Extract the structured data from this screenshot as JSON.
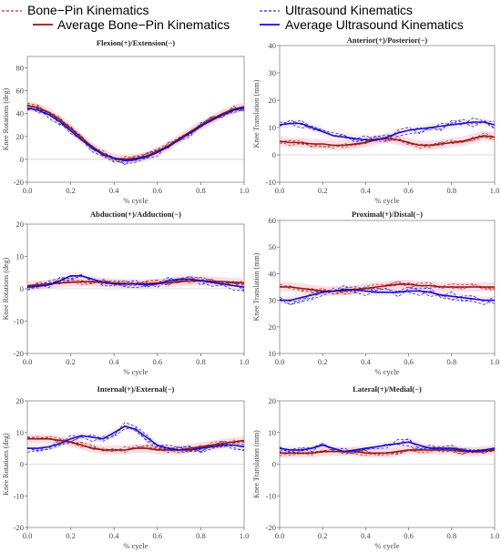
{
  "legend": {
    "bone_pin": "Bone−Pin Kinematics",
    "avg_bone_pin": "Average Bone−Pin Kinematics",
    "ultrasound": "Ultrasound Kinematics",
    "avg_ultrasound": "Average Ultrasound Kinematics"
  },
  "colors": {
    "bone_pin": "#c8302a",
    "avg_bone_pin": "#8b1a10",
    "ultrasound": "#2b2bd6",
    "avg_ultrasound": "#1010c8",
    "shade_bone_pin": "#f6c3d4",
    "shade_ultrasound": "#f6c3d4"
  },
  "chart_data": [
    {
      "type": "line",
      "title": "Flexion(+)/Extension(−)",
      "xlabel": "% cycle",
      "ylabel": "Knee Rotations (deg)",
      "xlim": [
        0,
        1
      ],
      "ylim": [
        -20,
        90
      ],
      "yticks": [
        "-20",
        "0",
        "20",
        "40",
        "60",
        "80"
      ],
      "ytick_values": [
        -20,
        0,
        20,
        40,
        60,
        80
      ],
      "xticks": [
        "0.0",
        "0.2",
        "0.4",
        "0.6",
        "0.8",
        "1.0"
      ],
      "xtick_values": [
        0,
        0.2,
        0.4,
        0.6,
        0.8,
        1.0
      ],
      "x": [
        0,
        0.05,
        0.1,
        0.15,
        0.2,
        0.25,
        0.3,
        0.35,
        0.4,
        0.45,
        0.5,
        0.55,
        0.6,
        0.65,
        0.7,
        0.75,
        0.8,
        0.85,
        0.9,
        0.95,
        1.0
      ],
      "series": [
        {
          "name": "Average Bone−Pin Kinematics",
          "values": [
            47,
            45,
            41,
            35,
            27,
            19,
            11,
            5,
            1,
            0,
            1,
            3,
            7,
            12,
            18,
            24,
            30,
            35,
            40,
            44,
            46
          ]
        },
        {
          "name": "Average Ultrasound Kinematics",
          "values": [
            45,
            43,
            39,
            33,
            25,
            17,
            10,
            4,
            1,
            -1,
            0,
            2,
            6,
            11,
            17,
            23,
            29,
            34,
            39,
            43,
            45
          ]
        }
      ]
    },
    {
      "type": "line",
      "title": "Anterior(+)/Posterior(−)",
      "xlabel": "% cycle",
      "ylabel": "Knee Translation (mm)",
      "xlim": [
        0,
        1
      ],
      "ylim": [
        -10,
        40
      ],
      "yticks": [
        "-10",
        "0",
        "10",
        "20",
        "30",
        "40"
      ],
      "ytick_values": [
        -10,
        0,
        10,
        20,
        30,
        40
      ],
      "xticks": [
        "0.0",
        "0.2",
        "0.4",
        "0.6",
        "0.8",
        "1.0"
      ],
      "xtick_values": [
        0,
        0.2,
        0.4,
        0.6,
        0.8,
        1.0
      ],
      "x": [
        0,
        0.05,
        0.1,
        0.15,
        0.2,
        0.25,
        0.3,
        0.35,
        0.4,
        0.45,
        0.5,
        0.55,
        0.6,
        0.65,
        0.7,
        0.75,
        0.8,
        0.85,
        0.9,
        0.95,
        1.0
      ],
      "series": [
        {
          "name": "Average Bone−Pin Kinematics",
          "values": [
            5,
            4.5,
            4.5,
            4,
            4,
            3.5,
            3.5,
            4,
            4.5,
            5.5,
            6,
            5.5,
            4.5,
            3.5,
            3.5,
            4,
            4.5,
            5,
            6,
            7,
            6.5
          ]
        },
        {
          "name": "Average Ultrasound Kinematics",
          "values": [
            11,
            11.5,
            11.5,
            10,
            8.5,
            7,
            6.5,
            6,
            5.5,
            5.5,
            6.5,
            8,
            9,
            9.5,
            10,
            10.5,
            11,
            11.5,
            12,
            12,
            11
          ]
        }
      ]
    },
    {
      "type": "line",
      "title": "Abduction(+)/Adduction(−)",
      "xlabel": "% cycle",
      "ylabel": "Knee Rotations (deg)",
      "xlim": [
        0,
        1
      ],
      "ylim": [
        -20,
        20
      ],
      "yticks": [
        "-20",
        "-10",
        "0",
        "10",
        "20"
      ],
      "ytick_values": [
        -20,
        -10,
        0,
        10,
        20
      ],
      "xticks": [
        "0.0",
        "0.2",
        "0.4",
        "0.6",
        "0.8",
        "1.0"
      ],
      "xtick_values": [
        0,
        0.2,
        0.4,
        0.6,
        0.8,
        1.0
      ],
      "x": [
        0,
        0.05,
        0.1,
        0.15,
        0.2,
        0.25,
        0.3,
        0.35,
        0.4,
        0.45,
        0.5,
        0.55,
        0.6,
        0.65,
        0.7,
        0.75,
        0.8,
        0.85,
        0.9,
        0.95,
        1.0
      ],
      "series": [
        {
          "name": "Average Bone−Pin Kinematics",
          "values": [
            1,
            1.2,
            1.5,
            1.8,
            2,
            2.2,
            2.2,
            2,
            1.8,
            1.6,
            1.5,
            1.6,
            1.8,
            2,
            2.2,
            2.4,
            2.5,
            2.4,
            2.2,
            2,
            1.8
          ]
        },
        {
          "name": "Average Ultrasound Kinematics",
          "values": [
            0.5,
            0.8,
            1.2,
            2.5,
            4,
            4,
            3,
            2,
            1.5,
            1.5,
            1.5,
            1.2,
            1.5,
            2.5,
            3,
            3,
            2.5,
            2,
            1.5,
            1,
            0.5
          ]
        }
      ]
    },
    {
      "type": "line",
      "title": "Proximal(+)/Distal(−)",
      "xlabel": "% cycle",
      "ylabel": "Knee Translation (mm)",
      "xlim": [
        0,
        1
      ],
      "ylim": [
        10,
        60
      ],
      "yticks": [
        "10",
        "20",
        "30",
        "40",
        "50",
        "60"
      ],
      "ytick_values": [
        10,
        20,
        30,
        40,
        50,
        60
      ],
      "xticks": [
        "0.0",
        "0.2",
        "0.4",
        "0.6",
        "0.8",
        "1.0"
      ],
      "xtick_values": [
        0,
        0.2,
        0.4,
        0.6,
        0.8,
        1.0
      ],
      "x": [
        0,
        0.05,
        0.1,
        0.15,
        0.2,
        0.25,
        0.3,
        0.35,
        0.4,
        0.45,
        0.5,
        0.55,
        0.6,
        0.65,
        0.7,
        0.75,
        0.8,
        0.85,
        0.9,
        0.95,
        1.0
      ],
      "series": [
        {
          "name": "Average Bone−Pin Kinematics",
          "values": [
            35,
            35,
            34.5,
            34,
            33.5,
            33.5,
            33.5,
            34,
            34.5,
            35,
            35.5,
            36,
            36,
            35.5,
            35.5,
            35,
            35,
            35,
            35,
            35,
            35
          ]
        },
        {
          "name": "Average Ultrasound Kinematics",
          "values": [
            30,
            30,
            31,
            32,
            33,
            33.5,
            34,
            34,
            33.5,
            33,
            33,
            33,
            33.5,
            33.5,
            33,
            32,
            31.5,
            31,
            30.5,
            30,
            30
          ]
        }
      ]
    },
    {
      "type": "line",
      "title": "Internal(+)/External(−)",
      "xlabel": "% cycle",
      "ylabel": "Knee Rotations (deg)",
      "xlim": [
        0,
        1
      ],
      "ylim": [
        -20,
        20
      ],
      "yticks": [
        "-20",
        "-10",
        "0",
        "10",
        "20"
      ],
      "ytick_values": [
        -20,
        -10,
        0,
        10,
        20
      ],
      "xticks": [
        "0.0",
        "0.2",
        "0.4",
        "0.6",
        "0.8",
        "1.0"
      ],
      "xtick_values": [
        0,
        0.2,
        0.4,
        0.6,
        0.8,
        1.0
      ],
      "x": [
        0,
        0.05,
        0.1,
        0.15,
        0.2,
        0.25,
        0.3,
        0.35,
        0.4,
        0.45,
        0.5,
        0.55,
        0.6,
        0.65,
        0.7,
        0.75,
        0.8,
        0.85,
        0.9,
        0.95,
        1.0
      ],
      "series": [
        {
          "name": "Average Bone−Pin Kinematics",
          "values": [
            8,
            8,
            8,
            7.5,
            7,
            6,
            5,
            4.5,
            4.5,
            4.5,
            5,
            5,
            4.5,
            4.5,
            4.5,
            5,
            5.5,
            6,
            6.5,
            7,
            7.5
          ]
        },
        {
          "name": "Average Ultrasound Kinematics",
          "values": [
            5,
            5,
            5.5,
            6.5,
            8,
            9,
            8.5,
            8,
            10,
            12,
            11,
            8.5,
            6,
            5,
            4.5,
            4.5,
            5,
            5.5,
            6,
            6,
            5.5
          ]
        }
      ]
    },
    {
      "type": "line",
      "title": "Lateral(+)/Medial(−)",
      "xlabel": "% cycle",
      "ylabel": "Knee Translation (mm)",
      "xlim": [
        0,
        1
      ],
      "ylim": [
        -20,
        20
      ],
      "yticks": [
        "-20",
        "-10",
        "0",
        "10",
        "20"
      ],
      "ytick_values": [
        -20,
        -10,
        0,
        10,
        20
      ],
      "xticks": [
        "0.0",
        "0.2",
        "0.4",
        "0.6",
        "0.8",
        "1.0"
      ],
      "xtick_values": [
        0,
        0.2,
        0.4,
        0.6,
        0.8,
        1.0
      ],
      "x": [
        0,
        0.05,
        0.1,
        0.15,
        0.2,
        0.25,
        0.3,
        0.35,
        0.4,
        0.45,
        0.5,
        0.55,
        0.6,
        0.65,
        0.7,
        0.75,
        0.8,
        0.85,
        0.9,
        0.95,
        1.0
      ],
      "series": [
        {
          "name": "Average Bone−Pin Kinematics",
          "values": [
            3.5,
            3.5,
            3.5,
            3.5,
            4,
            4,
            4,
            4,
            3.5,
            3.5,
            3.5,
            4,
            4.5,
            4.5,
            4.5,
            4.5,
            4.5,
            4,
            4,
            4,
            4.5
          ]
        },
        {
          "name": "Average Ultrasound Kinematics",
          "values": [
            5,
            4.5,
            4.5,
            5,
            6,
            5,
            4,
            4.5,
            5,
            5.5,
            6,
            6.5,
            7,
            6,
            5,
            5,
            5,
            4.5,
            4,
            4.5,
            5
          ]
        }
      ]
    }
  ]
}
